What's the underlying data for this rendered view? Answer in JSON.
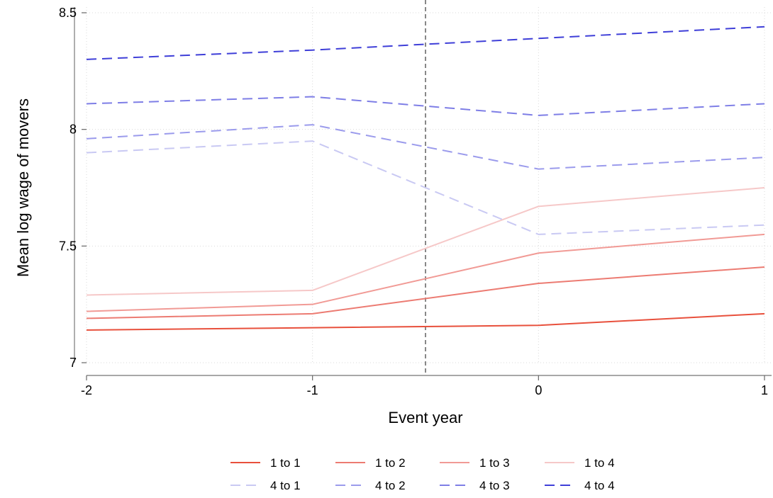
{
  "chart_data": {
    "type": "line",
    "xlabel": "Event year",
    "ylabel": "Mean log wage of movers",
    "x": [
      -2,
      -1,
      0,
      1
    ],
    "xlim": [
      -2,
      1
    ],
    "ylim": [
      7,
      8.5
    ],
    "xticks": [
      "-2",
      "-1",
      "0",
      "1"
    ],
    "yticks": [
      "7",
      "7.5",
      "8",
      "8.5"
    ],
    "grid": true,
    "reference_line": {
      "x": -0.5,
      "style": "dashed"
    },
    "legend_position": "bottom",
    "series": [
      {
        "name": "1 to 1",
        "values": [
          7.14,
          7.15,
          7.16,
          7.21
        ],
        "color": "#e8503c",
        "dashed": false
      },
      {
        "name": "1 to 2",
        "values": [
          7.19,
          7.21,
          7.34,
          7.41
        ],
        "color": "#ec7b72",
        "dashed": false
      },
      {
        "name": "1 to 3",
        "values": [
          7.22,
          7.25,
          7.47,
          7.55
        ],
        "color": "#f19a95",
        "dashed": false
      },
      {
        "name": "1 to 4",
        "values": [
          7.29,
          7.31,
          7.67,
          7.75
        ],
        "color": "#f6c8c8",
        "dashed": false
      },
      {
        "name": "4 to 1",
        "values": [
          7.9,
          7.95,
          7.55,
          7.59
        ],
        "color": "#c9c9f3",
        "dashed": true
      },
      {
        "name": "4 to 2",
        "values": [
          7.96,
          8.02,
          7.83,
          7.88
        ],
        "color": "#9b9bec",
        "dashed": true
      },
      {
        "name": "4 to 3",
        "values": [
          8.11,
          8.14,
          8.06,
          8.11
        ],
        "color": "#7e7ee6",
        "dashed": true
      },
      {
        "name": "4 to 4",
        "values": [
          8.3,
          8.34,
          8.39,
          8.44
        ],
        "color": "#3f3fd8",
        "dashed": true
      }
    ]
  }
}
